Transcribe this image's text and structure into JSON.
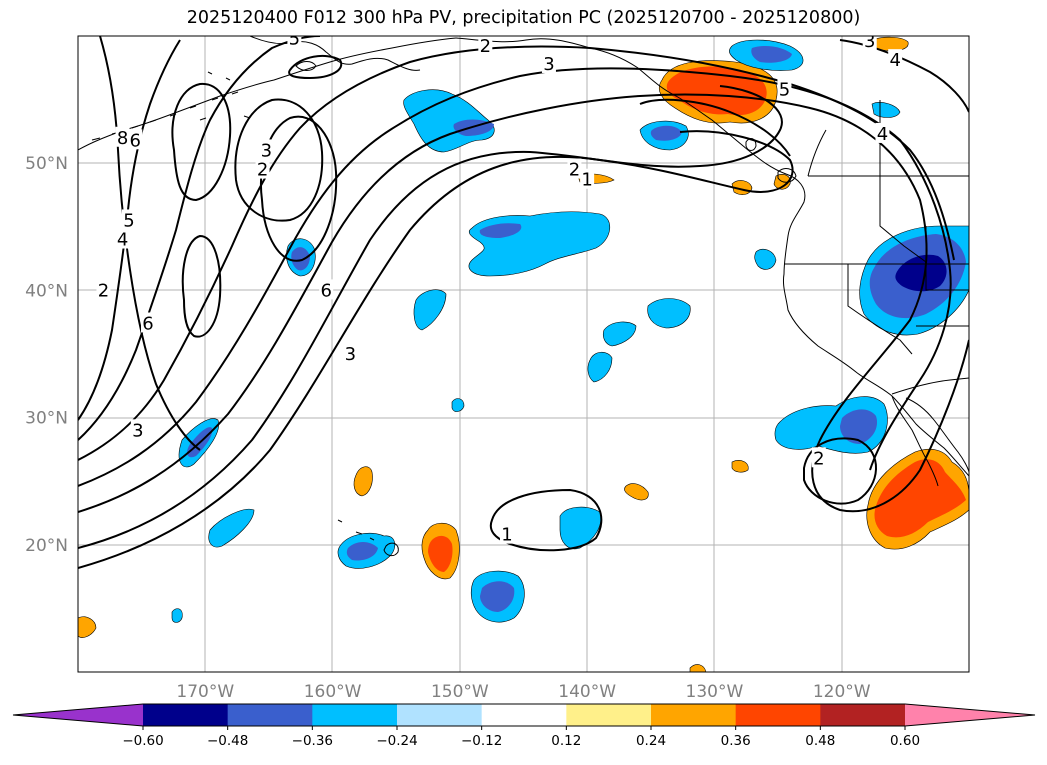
{
  "title": "2025120400 F012 300 hPa PV, precipitation PC (2025120700 - 2025120800)",
  "map": {
    "lon_range": [
      -180,
      -110
    ],
    "lat_range": [
      10,
      60
    ],
    "lat_ticks": [
      {
        "value": 50,
        "label": "50°N"
      },
      {
        "value": 40,
        "label": "40°N"
      },
      {
        "value": 30,
        "label": "30°N"
      },
      {
        "value": 20,
        "label": "20°N"
      }
    ],
    "lon_ticks": [
      {
        "value": -170,
        "label": "170°W"
      },
      {
        "value": -160,
        "label": "160°W"
      },
      {
        "value": -150,
        "label": "150°W"
      },
      {
        "value": -140,
        "label": "140°W"
      },
      {
        "value": -130,
        "label": "130°W"
      },
      {
        "value": -120,
        "label": "120°W"
      }
    ],
    "pv_contour_levels": [
      "1",
      "2",
      "3",
      "4",
      "5",
      "6",
      "8"
    ],
    "contour_labels": [
      {
        "text": "3",
        "lon": -143,
        "lat": 57.8
      },
      {
        "text": "2",
        "lon": -141,
        "lat": 49.5
      },
      {
        "text": "1",
        "lon": -140,
        "lat": 48.7
      },
      {
        "text": "3",
        "lon": -165.2,
        "lat": 51
      },
      {
        "text": "2",
        "lon": -165.5,
        "lat": 49.5
      },
      {
        "text": "5",
        "lon": -176,
        "lat": 45.5
      },
      {
        "text": "4",
        "lon": -176.5,
        "lat": 44
      },
      {
        "text": "2",
        "lon": -178,
        "lat": 40
      },
      {
        "text": "8",
        "lon": -176.5,
        "lat": 52
      },
      {
        "text": "6",
        "lon": -175.5,
        "lat": 51.8
      },
      {
        "text": "6",
        "lon": -160.5,
        "lat": 40
      },
      {
        "text": "6",
        "lon": -174.5,
        "lat": 37.4
      },
      {
        "text": "3",
        "lon": -158.6,
        "lat": 35
      },
      {
        "text": "3",
        "lon": -175.3,
        "lat": 29
      },
      {
        "text": "1",
        "lon": -146.3,
        "lat": 20.8
      },
      {
        "text": "2",
        "lon": -121.8,
        "lat": 26.8
      },
      {
        "text": "4",
        "lon": -116.8,
        "lat": 52.3
      },
      {
        "text": "4",
        "lon": -115.8,
        "lat": 58.1
      },
      {
        "text": "5",
        "lon": -124.5,
        "lat": 55.8
      },
      {
        "text": "5",
        "lon": -163,
        "lat": 59.8
      },
      {
        "text": "2",
        "lon": -148,
        "lat": 59.2
      },
      {
        "text": "3",
        "lon": -117.8,
        "lat": 59.6
      }
    ]
  },
  "colorbar": {
    "tick_labels": [
      "-0.60",
      "-0.48",
      "-0.36",
      "-0.24",
      "-0.12",
      "0.12",
      "0.24",
      "0.36",
      "0.48",
      "0.60"
    ],
    "colors": [
      "#9932cc",
      "#00008b",
      "#3a5fcd",
      "#00bfff",
      "#b0e2ff",
      "#ffffff",
      "#fff08a",
      "#ffa500",
      "#ff4500",
      "#b22222",
      "#ff82ab"
    ]
  }
}
